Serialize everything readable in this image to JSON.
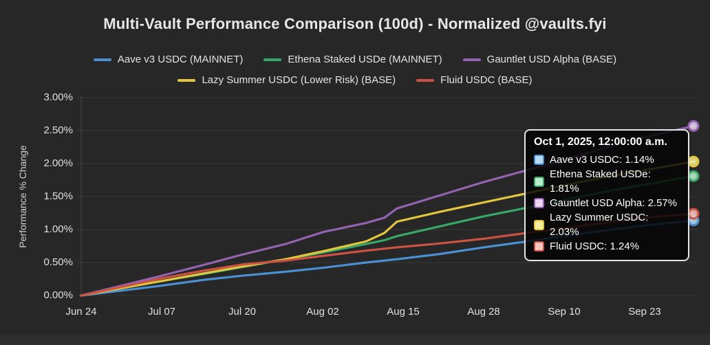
{
  "title": "Multi-Vault Performance Comparison (100d) - Normalized @vaults.fyi",
  "colors": {
    "background": "#272727",
    "grid": "#3a3a3a",
    "axis": "#4a4a4a",
    "text": "#e0e0e0"
  },
  "chart_data": {
    "type": "line",
    "title": "Multi-Vault Performance Comparison (100d) - Normalized @vaults.fyi",
    "xlabel": "",
    "ylabel": "Performance % Change",
    "ylim": [
      0,
      3
    ],
    "grid": true,
    "legend_position": "top",
    "y_ticks": [
      {
        "value": 0.0,
        "label": "0.00%"
      },
      {
        "value": 0.5,
        "label": "0.50%"
      },
      {
        "value": 1.0,
        "label": "1.00%"
      },
      {
        "value": 1.5,
        "label": "1.50%"
      },
      {
        "value": 2.0,
        "label": "2.00%"
      },
      {
        "value": 2.5,
        "label": "2.50%"
      },
      {
        "value": 3.0,
        "label": "3.00%"
      }
    ],
    "x_ticks": [
      {
        "day": 0,
        "label": "Jun 24"
      },
      {
        "day": 13,
        "label": "Jul 07"
      },
      {
        "day": 26,
        "label": "Jul 20"
      },
      {
        "day": 39,
        "label": "Aug 02"
      },
      {
        "day": 52,
        "label": "Aug 15"
      },
      {
        "day": 65,
        "label": "Aug 28"
      },
      {
        "day": 78,
        "label": "Sep 10"
      },
      {
        "day": 91,
        "label": "Sep 23"
      }
    ],
    "x_days": [
      0,
      7,
      13,
      20,
      26,
      33,
      39,
      46,
      49,
      51,
      58,
      65,
      72,
      78,
      85,
      91,
      99
    ],
    "series": [
      {
        "name": "Aave v3 USDC (MAINNET)",
        "short_name": "Aave v3 USDC",
        "color": "#4a90d2",
        "swatch_fill": "#b9d9f2",
        "final_value": "1.14%",
        "values": [
          0,
          0.08,
          0.15,
          0.24,
          0.3,
          0.36,
          0.42,
          0.5,
          0.53,
          0.55,
          0.63,
          0.73,
          0.82,
          0.9,
          0.99,
          1.06,
          1.14
        ]
      },
      {
        "name": "Ethena Staked USDe (MAINNET)",
        "short_name": "Ethena Staked USDe",
        "color": "#38a869",
        "swatch_fill": "#b9ecce",
        "final_value": "1.81%",
        "values": [
          0,
          0.12,
          0.22,
          0.33,
          0.43,
          0.55,
          0.65,
          0.78,
          0.84,
          0.9,
          1.05,
          1.2,
          1.33,
          1.45,
          1.58,
          1.68,
          1.81
        ]
      },
      {
        "name": "Gauntlet USD Alpha (BASE)",
        "short_name": "Gauntlet USD Alpha",
        "color": "#9363b0",
        "swatch_fill": "#e9d6f0",
        "final_value": "2.57%",
        "values": [
          0,
          0.16,
          0.3,
          0.47,
          0.62,
          0.78,
          0.96,
          1.1,
          1.18,
          1.32,
          1.52,
          1.72,
          1.9,
          2.05,
          2.25,
          2.4,
          2.57
        ]
      },
      {
        "name": "Lazy Summer USDC (Lower Risk) (BASE)",
        "short_name": "Lazy Summer USDC",
        "color": "#e2c63e",
        "swatch_fill": "#f6ec9f",
        "final_value": "2.03%",
        "values": [
          0,
          0.12,
          0.22,
          0.34,
          0.44,
          0.55,
          0.67,
          0.82,
          0.95,
          1.12,
          1.27,
          1.41,
          1.55,
          1.67,
          1.8,
          1.9,
          2.03
        ]
      },
      {
        "name": "Fluid USDC (BASE)",
        "short_name": "Fluid USDC",
        "color": "#cc5244",
        "swatch_fill": "#f6c5be",
        "final_value": "1.24%",
        "values": [
          0,
          0.14,
          0.26,
          0.38,
          0.47,
          0.53,
          0.6,
          0.68,
          0.71,
          0.73,
          0.79,
          0.86,
          0.95,
          1.02,
          1.11,
          1.18,
          1.24
        ]
      }
    ]
  },
  "tooltip": {
    "title": "Oct 1, 2025, 12:00:00 a.m.",
    "rows": [
      {
        "label": "Aave v3 USDC",
        "value": "1.14%"
      },
      {
        "label": "Ethena Staked USDe",
        "value": "1.81%"
      },
      {
        "label": "Gauntlet USD Alpha",
        "value": "2.57%"
      },
      {
        "label": "Lazy Summer USDC",
        "value": "2.03%"
      },
      {
        "label": "Fluid USDC",
        "value": "1.24%"
      }
    ]
  }
}
